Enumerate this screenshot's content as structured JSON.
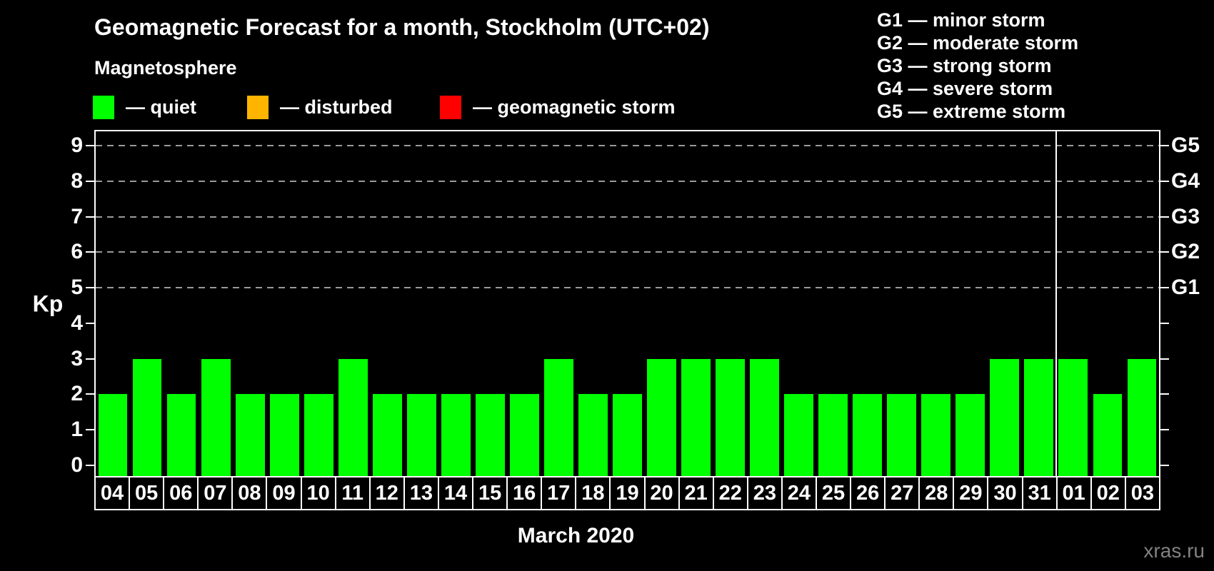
{
  "title": "Geomagnetic Forecast for a month, Stockholm (UTC+02)",
  "subtitle": "Magnetosphere",
  "legend": {
    "items": [
      {
        "key": "quiet",
        "label": "— quiet",
        "color": "#00ff00"
      },
      {
        "key": "disturbed",
        "label": "— disturbed",
        "color": "#ffb400"
      },
      {
        "key": "storm",
        "label": "— geomagnetic storm",
        "color": "#ff0000"
      }
    ]
  },
  "g_legend": {
    "items": [
      "G1 — minor storm",
      "G2 — moderate storm",
      "G3 — strong storm",
      "G4 — severe storm",
      "G5 — extreme storm"
    ]
  },
  "watermark": "xras.ru",
  "colors": {
    "background": "#000000",
    "axis": "#ffffff",
    "grid": "#9a9a9a",
    "text": "#ffffff",
    "watermark": "#828282",
    "quiet": "#00ff00",
    "disturbed": "#ffb400",
    "storm": "#ff0000"
  },
  "chart_data": {
    "type": "bar",
    "title": "Geomagnetic Forecast for a month, Stockholm (UTC+02)",
    "categories": [
      "04",
      "05",
      "06",
      "07",
      "08",
      "09",
      "10",
      "11",
      "12",
      "13",
      "14",
      "15",
      "16",
      "17",
      "18",
      "19",
      "20",
      "21",
      "22",
      "23",
      "24",
      "25",
      "26",
      "27",
      "28",
      "29",
      "30",
      "31",
      "01",
      "02",
      "03"
    ],
    "values": [
      2,
      3,
      2,
      3,
      2,
      2,
      2,
      3,
      2,
      2,
      2,
      2,
      2,
      3,
      2,
      2,
      3,
      3,
      3,
      3,
      2,
      2,
      2,
      2,
      2,
      2,
      3,
      3,
      3,
      2,
      3
    ],
    "bar_color": "#00ff00",
    "xlabel": "March 2020",
    "ylabel": "Kp",
    "ylim": [
      -0.3,
      9.4
    ],
    "yticks": [
      0,
      1,
      2,
      3,
      4,
      5,
      6,
      7,
      8,
      9
    ],
    "grid_levels": [
      5,
      6,
      7,
      8,
      9
    ],
    "grid_style": "dashed horizontal lines at storm levels only",
    "right_axis_labels": [
      {
        "value": 5,
        "label": "G1"
      },
      {
        "value": 6,
        "label": "G2"
      },
      {
        "value": 7,
        "label": "G3"
      },
      {
        "value": 8,
        "label": "G4"
      },
      {
        "value": 9,
        "label": "G5"
      }
    ],
    "month_boundary_cell": 28,
    "legend_position": "top-left"
  }
}
